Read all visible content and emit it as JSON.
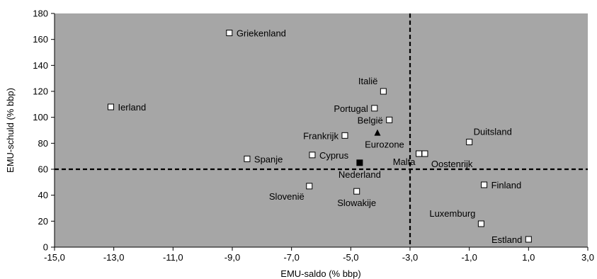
{
  "chart_data": {
    "type": "scatter",
    "title": "",
    "xlabel": "EMU-saldo (% bbp)",
    "ylabel": "EMU-schuld (% bbp)",
    "xlim": [
      -15,
      3
    ],
    "ylim": [
      0,
      180
    ],
    "xticks": [
      -15,
      -13,
      -11,
      -9,
      -7,
      -5,
      -3,
      -1,
      1,
      3
    ],
    "xtick_labels": [
      "-15,0",
      "-13,0",
      "-11,0",
      "-9,0",
      "-7,0",
      "-5,0",
      "-3,0",
      "-1,0",
      "1,0",
      "3,0"
    ],
    "yticks": [
      0,
      20,
      40,
      60,
      80,
      100,
      120,
      140,
      160,
      180
    ],
    "ytick_labels": [
      "0",
      "20",
      "40",
      "60",
      "80",
      "100",
      "120",
      "140",
      "160",
      "180"
    ],
    "grid": false,
    "plot_background": "#a6a6a6",
    "reference_lines": [
      {
        "orientation": "vertical",
        "x": -3,
        "style": "dashed"
      },
      {
        "orientation": "horizontal",
        "y": 60,
        "style": "dashed"
      }
    ],
    "points": [
      {
        "label": "Griekenland",
        "x": -9.1,
        "y": 165,
        "marker": "open-square",
        "label_pos": "right"
      },
      {
        "label": "Ierland",
        "x": -13.1,
        "y": 108,
        "marker": "open-square",
        "label_pos": "right"
      },
      {
        "label": "Italië",
        "x": -3.9,
        "y": 120,
        "marker": "open-square",
        "label_pos": "above-left"
      },
      {
        "label": "Portugal",
        "x": -4.2,
        "y": 107,
        "marker": "open-square",
        "label_pos": "left"
      },
      {
        "label": "België",
        "x": -3.7,
        "y": 98,
        "marker": "open-square",
        "label_pos": "left"
      },
      {
        "label": "Frankrijk",
        "x": -5.2,
        "y": 86,
        "marker": "open-square",
        "label_pos": "left"
      },
      {
        "label": "Eurozone",
        "x": -4.1,
        "y": 88,
        "marker": "filled-triangle",
        "label_pos": "below"
      },
      {
        "label": "Spanje",
        "x": -8.5,
        "y": 68,
        "marker": "open-square",
        "label_pos": "right"
      },
      {
        "label": "Cyprus",
        "x": -6.3,
        "y": 71,
        "marker": "open-square",
        "label_pos": "right"
      },
      {
        "label": "Malta",
        "x": -2.7,
        "y": 72,
        "marker": "open-square",
        "label_pos": "below-left"
      },
      {
        "label": "Oostenrijk",
        "x": -2.5,
        "y": 72,
        "marker": "open-square",
        "label_pos": "below-right"
      },
      {
        "label": "Nederland",
        "x": -4.7,
        "y": 65,
        "marker": "filled-square",
        "label_pos": "below"
      },
      {
        "label": "Duitsland",
        "x": -1.0,
        "y": 81,
        "marker": "open-square",
        "label_pos": "above-right"
      },
      {
        "label": "Slovenië",
        "x": -6.4,
        "y": 47,
        "marker": "open-square",
        "label_pos": "below-left"
      },
      {
        "label": "Slowakije",
        "x": -4.8,
        "y": 43,
        "marker": "open-square",
        "label_pos": "below"
      },
      {
        "label": "Finland",
        "x": -0.5,
        "y": 48,
        "marker": "open-square",
        "label_pos": "right"
      },
      {
        "label": "Luxemburg",
        "x": -0.6,
        "y": 18,
        "marker": "open-square",
        "label_pos": "above-left"
      },
      {
        "label": "Estland",
        "x": 1.0,
        "y": 6,
        "marker": "open-square",
        "label_pos": "left"
      }
    ]
  }
}
